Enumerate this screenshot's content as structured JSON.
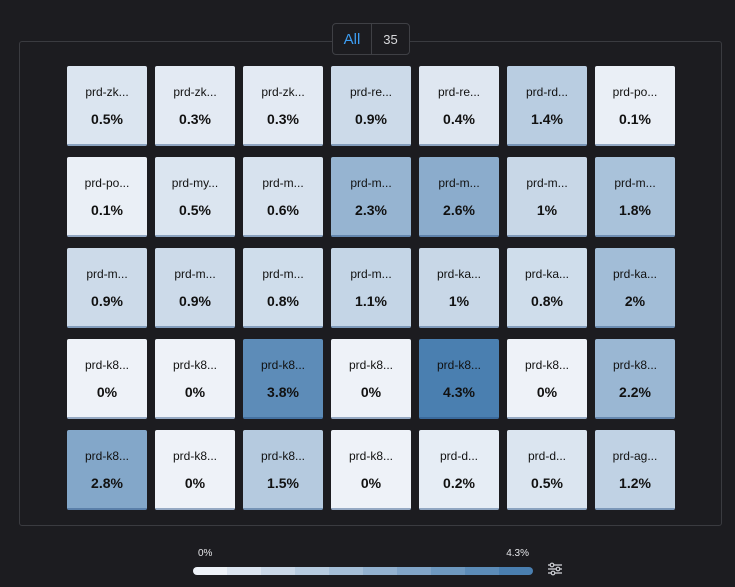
{
  "filter": {
    "all_label": "All",
    "count": "35"
  },
  "heatmap": {
    "color_min": "#eef2f8",
    "color_max": "#4a7fb0",
    "max_value": 4.3,
    "tiles": [
      {
        "name": "prd-zk...",
        "value": "0.5%",
        "v": 0.5
      },
      {
        "name": "prd-zk...",
        "value": "0.3%",
        "v": 0.3
      },
      {
        "name": "prd-zk...",
        "value": "0.3%",
        "v": 0.3
      },
      {
        "name": "prd-re...",
        "value": "0.9%",
        "v": 0.9
      },
      {
        "name": "prd-re...",
        "value": "0.4%",
        "v": 0.4
      },
      {
        "name": "prd-rd...",
        "value": "1.4%",
        "v": 1.4
      },
      {
        "name": "prd-po...",
        "value": "0.1%",
        "v": 0.1
      },
      {
        "name": "prd-po...",
        "value": "0.1%",
        "v": 0.1
      },
      {
        "name": "prd-my...",
        "value": "0.5%",
        "v": 0.5
      },
      {
        "name": "prd-m...",
        "value": "0.6%",
        "v": 0.6
      },
      {
        "name": "prd-m...",
        "value": "2.3%",
        "v": 2.3
      },
      {
        "name": "prd-m...",
        "value": "2.6%",
        "v": 2.6
      },
      {
        "name": "prd-m...",
        "value": "1%",
        "v": 1.0
      },
      {
        "name": "prd-m...",
        "value": "1.8%",
        "v": 1.8
      },
      {
        "name": "prd-m...",
        "value": "0.9%",
        "v": 0.9
      },
      {
        "name": "prd-m...",
        "value": "0.9%",
        "v": 0.9
      },
      {
        "name": "prd-m...",
        "value": "0.8%",
        "v": 0.8
      },
      {
        "name": "prd-m...",
        "value": "1.1%",
        "v": 1.1
      },
      {
        "name": "prd-ka...",
        "value": "1%",
        "v": 1.0
      },
      {
        "name": "prd-ka...",
        "value": "0.8%",
        "v": 0.8
      },
      {
        "name": "prd-ka...",
        "value": "2%",
        "v": 2.0
      },
      {
        "name": "prd-k8...",
        "value": "0%",
        "v": 0
      },
      {
        "name": "prd-k8...",
        "value": "0%",
        "v": 0
      },
      {
        "name": "prd-k8...",
        "value": "3.8%",
        "v": 3.8
      },
      {
        "name": "prd-k8...",
        "value": "0%",
        "v": 0
      },
      {
        "name": "prd-k8...",
        "value": "4.3%",
        "v": 4.3
      },
      {
        "name": "prd-k8...",
        "value": "0%",
        "v": 0
      },
      {
        "name": "prd-k8...",
        "value": "2.2%",
        "v": 2.2
      },
      {
        "name": "prd-k8...",
        "value": "2.8%",
        "v": 2.8
      },
      {
        "name": "prd-k8...",
        "value": "0%",
        "v": 0
      },
      {
        "name": "prd-k8...",
        "value": "1.5%",
        "v": 1.5
      },
      {
        "name": "prd-k8...",
        "value": "0%",
        "v": 0
      },
      {
        "name": "prd-d...",
        "value": "0.2%",
        "v": 0.2
      },
      {
        "name": "prd-d...",
        "value": "0.5%",
        "v": 0.5
      },
      {
        "name": "prd-ag...",
        "value": "1.2%",
        "v": 1.2
      }
    ]
  },
  "legend": {
    "min_label": "0%",
    "max_label": "4.3%"
  },
  "icons": {
    "settings": "sliders-icon"
  }
}
